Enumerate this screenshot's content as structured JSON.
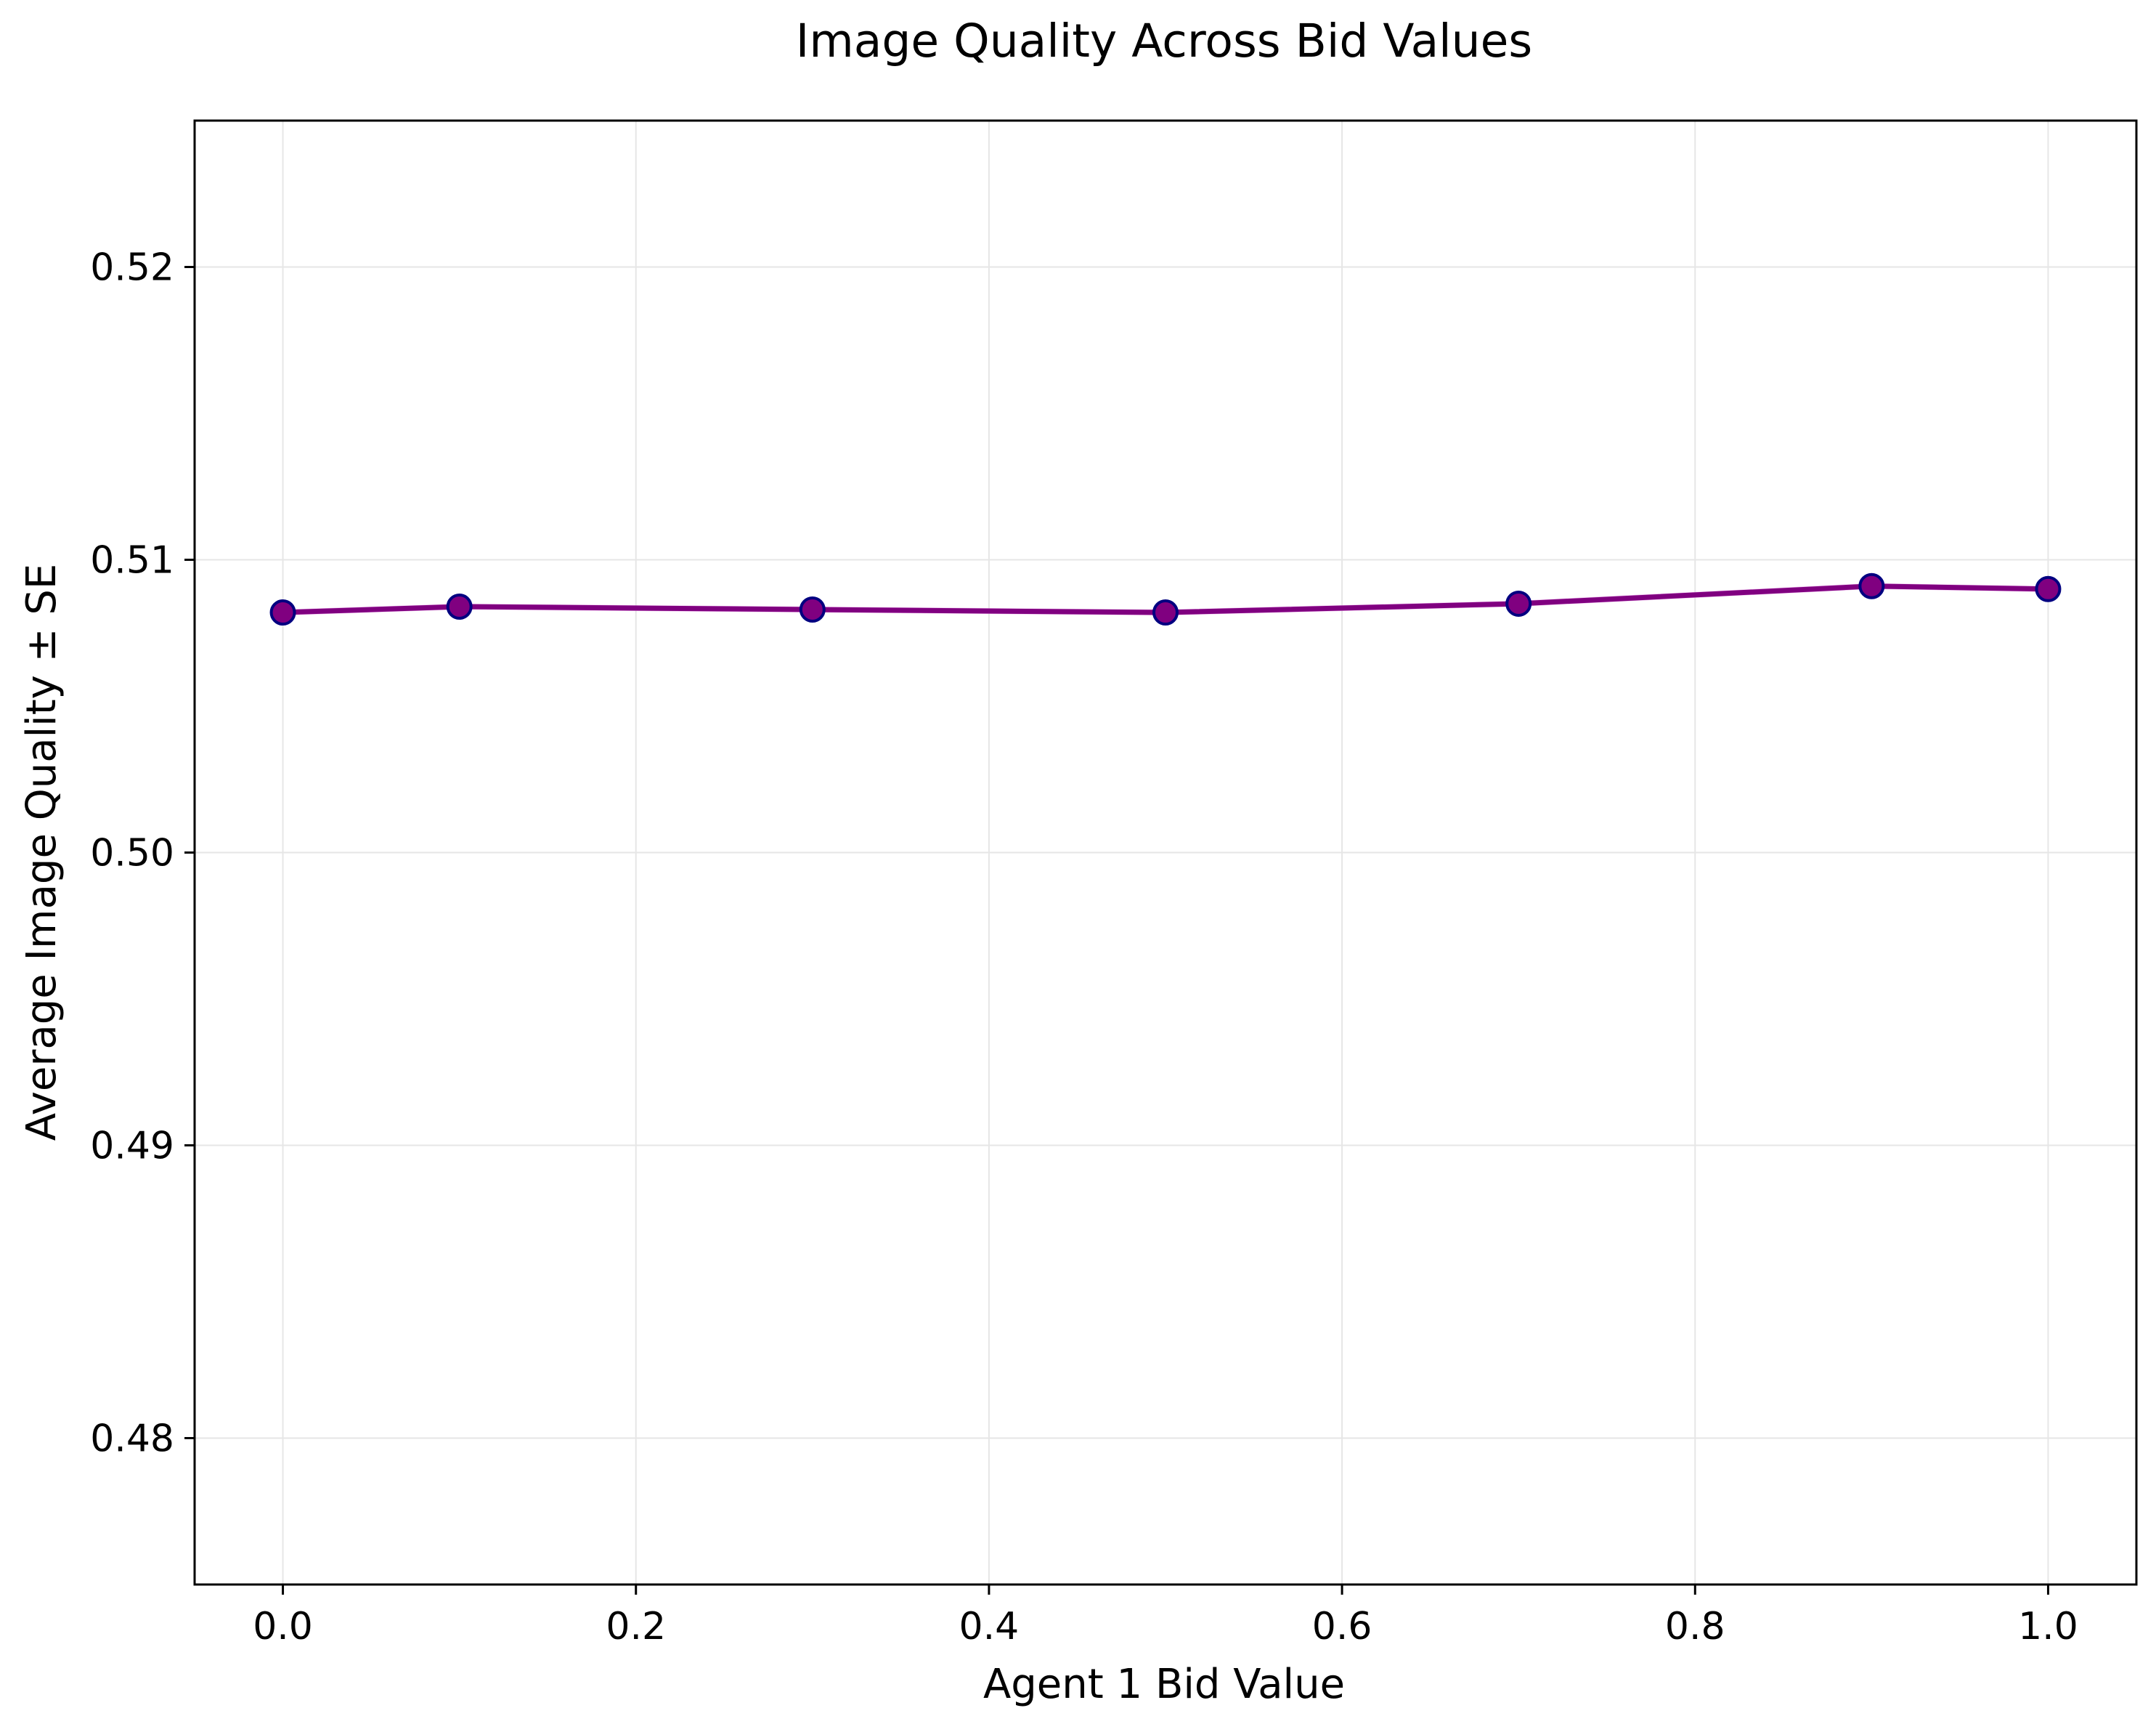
{
  "chart_data": {
    "type": "line",
    "title": "Image Quality Across Bid Values",
    "xlabel": "Agent 1 Bid Value",
    "ylabel": "Average Image Quality ± SE",
    "xlim": [
      -0.05,
      1.05
    ],
    "ylim": [
      0.475,
      0.525
    ],
    "xticks": [
      0.0,
      0.2,
      0.4,
      0.6,
      0.8,
      1.0
    ],
    "xtick_labels": [
      "0.0",
      "0.2",
      "0.4",
      "0.6",
      "0.8",
      "1.0"
    ],
    "yticks": [
      0.48,
      0.49,
      0.5,
      0.51,
      0.52
    ],
    "ytick_labels": [
      "0.48",
      "0.49",
      "0.50",
      "0.51",
      "0.52"
    ],
    "grid": true,
    "series": [
      {
        "x": [
          0.0,
          0.1,
          0.3,
          0.5,
          0.7,
          0.9,
          1.0
        ],
        "y": [
          0.5082,
          0.5084,
          0.5083,
          0.5082,
          0.5085,
          0.5091,
          0.509
        ],
        "se": [
          0.0001,
          0.0001,
          0.0001,
          0.0001,
          0.0001,
          0.0001,
          0.0001
        ],
        "color": "#800080",
        "marker_edge_color": "#000080",
        "band_color": "#e080e0"
      }
    ]
  }
}
